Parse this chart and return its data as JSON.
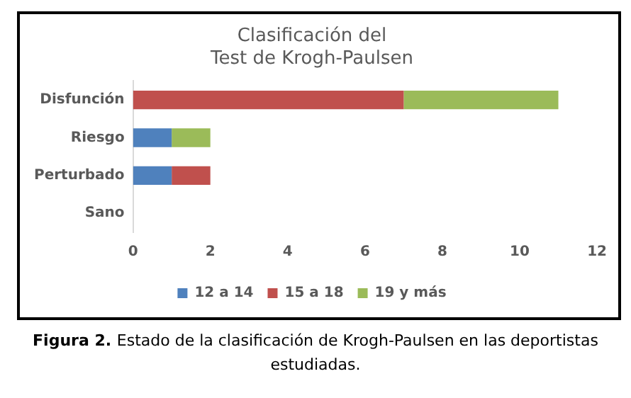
{
  "chart_data": {
    "type": "bar",
    "orientation": "horizontal",
    "stacked": true,
    "title": "Clasificación del Test de Krogh-Paulsen",
    "categories": [
      "Disfunción",
      "Riesgo",
      "Perturbado",
      "Sano"
    ],
    "series": [
      {
        "name": "12 a 14",
        "color": "#4f81bd",
        "values": [
          0,
          1,
          1,
          0
        ]
      },
      {
        "name": "15 a 18",
        "color": "#c0504d",
        "values": [
          7,
          0,
          1,
          0
        ]
      },
      {
        "name": "19 y más",
        "color": "#9bbb59",
        "values": [
          4,
          1,
          0,
          0
        ]
      }
    ],
    "xlim": [
      0,
      12
    ],
    "xticks": [
      0,
      2,
      4,
      6,
      8,
      10,
      12
    ],
    "grid": false,
    "legend": "bottom",
    "annotations": [
      "Figura  2.",
      "Estado de la clasificación  de Krogh-Paulsen en las deportistas  estudiadas."
    ]
  }
}
